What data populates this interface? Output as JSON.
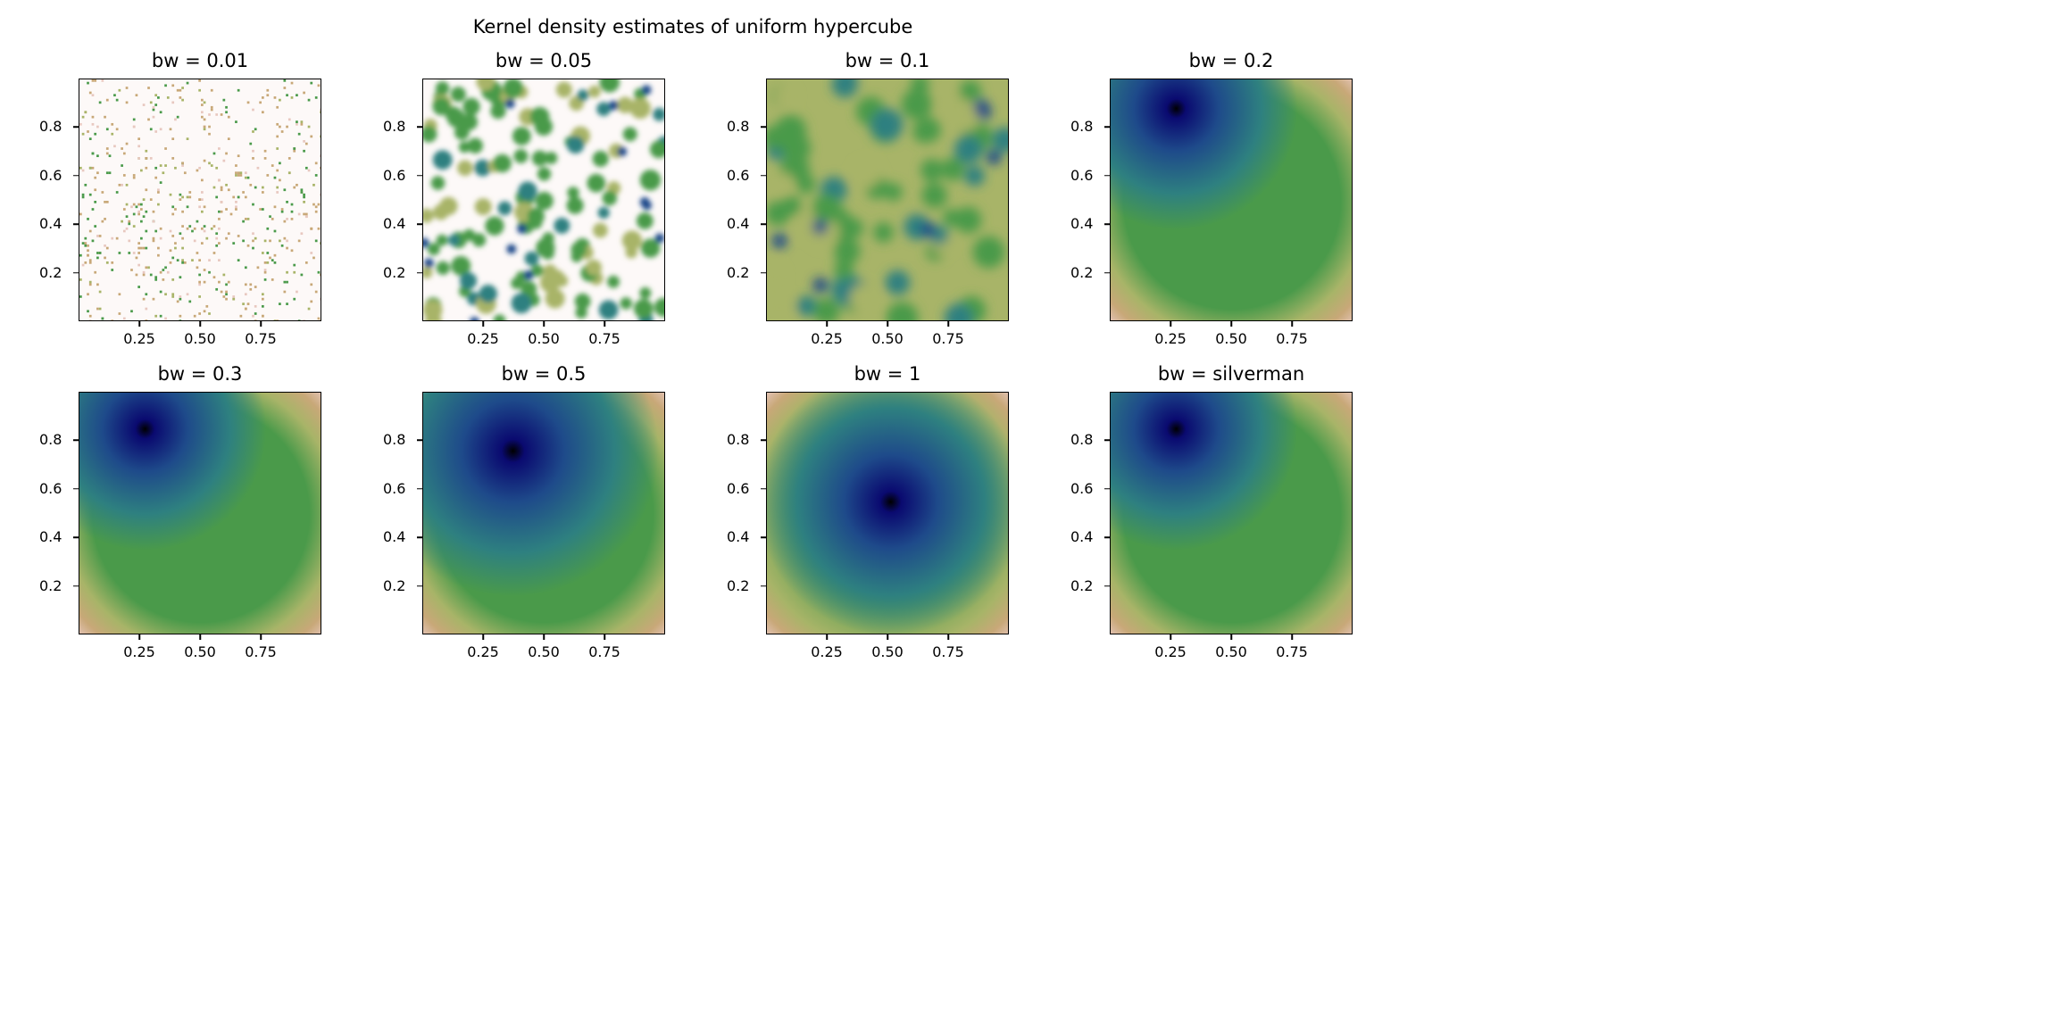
{
  "figure": {
    "suptitle": "Kernel density estimates of uniform hypercube",
    "colormap": "gist_earth_r",
    "colors": {
      "low": "#fdf9f8",
      "pink": "#e8c8c0",
      "tan": "#c8a878",
      "olive": "#a8b468",
      "green": "#4a9a4a",
      "teal": "#2e8080",
      "blue": "#1e4a8a",
      "navy": "#0a0a70",
      "peak": "#000000"
    }
  },
  "chart_data": [
    {
      "type": "heatmap",
      "title": "bw = 0.01",
      "bandwidth": 0.01,
      "pattern": "sparse-speckle",
      "xlim": [
        0,
        1
      ],
      "ylim": [
        0,
        1
      ],
      "xticks": [
        "0.25",
        "0.50",
        "0.75"
      ],
      "yticks": [
        "0.2",
        "0.4",
        "0.6",
        "0.8"
      ]
    },
    {
      "type": "heatmap",
      "title": "bw = 0.05",
      "bandwidth": 0.05,
      "pattern": "dense-blobs",
      "xlim": [
        0,
        1
      ],
      "ylim": [
        0,
        1
      ],
      "xticks": [
        "0.25",
        "0.50",
        "0.75"
      ],
      "yticks": [
        "0.2",
        "0.4",
        "0.6",
        "0.8"
      ]
    },
    {
      "type": "heatmap",
      "title": "bw = 0.1",
      "bandwidth": 0.1,
      "pattern": "medium-blobs",
      "xlim": [
        0,
        1
      ],
      "ylim": [
        0,
        1
      ],
      "xticks": [
        "0.25",
        "0.50",
        "0.75"
      ],
      "yticks": [
        "0.2",
        "0.4",
        "0.6",
        "0.8"
      ]
    },
    {
      "type": "heatmap",
      "title": "bw = 0.2",
      "bandwidth": 0.2,
      "pattern": "smooth",
      "peak": [
        0.27,
        0.88
      ],
      "xlim": [
        0,
        1
      ],
      "ylim": [
        0,
        1
      ],
      "xticks": [
        "0.25",
        "0.50",
        "0.75"
      ],
      "yticks": [
        "0.2",
        "0.4",
        "0.6",
        "0.8"
      ]
    },
    {
      "type": "heatmap",
      "title": "bw = 0.3",
      "bandwidth": 0.3,
      "pattern": "smooth",
      "peak": [
        0.27,
        0.85
      ],
      "xlim": [
        0,
        1
      ],
      "ylim": [
        0,
        1
      ],
      "xticks": [
        "0.25",
        "0.50",
        "0.75"
      ],
      "yticks": [
        "0.2",
        "0.4",
        "0.6",
        "0.8"
      ]
    },
    {
      "type": "heatmap",
      "title": "bw = 0.5",
      "bandwidth": 0.5,
      "pattern": "smooth",
      "peak": [
        0.37,
        0.76
      ],
      "xlim": [
        0,
        1
      ],
      "ylim": [
        0,
        1
      ],
      "xticks": [
        "0.25",
        "0.50",
        "0.75"
      ],
      "yticks": [
        "0.2",
        "0.4",
        "0.6",
        "0.8"
      ]
    },
    {
      "type": "heatmap",
      "title": "bw = 1",
      "bandwidth": 1,
      "pattern": "smooth",
      "peak": [
        0.51,
        0.55
      ],
      "xlim": [
        0,
        1
      ],
      "ylim": [
        0,
        1
      ],
      "xticks": [
        "0.25",
        "0.50",
        "0.75"
      ],
      "yticks": [
        "0.2",
        "0.4",
        "0.6",
        "0.8"
      ]
    },
    {
      "type": "heatmap",
      "title": "bw = silverman",
      "bandwidth": "silverman",
      "pattern": "smooth",
      "peak": [
        0.27,
        0.85
      ],
      "xlim": [
        0,
        1
      ],
      "ylim": [
        0,
        1
      ],
      "xticks": [
        "0.25",
        "0.50",
        "0.75"
      ],
      "yticks": [
        "0.2",
        "0.4",
        "0.6",
        "0.8"
      ]
    }
  ]
}
